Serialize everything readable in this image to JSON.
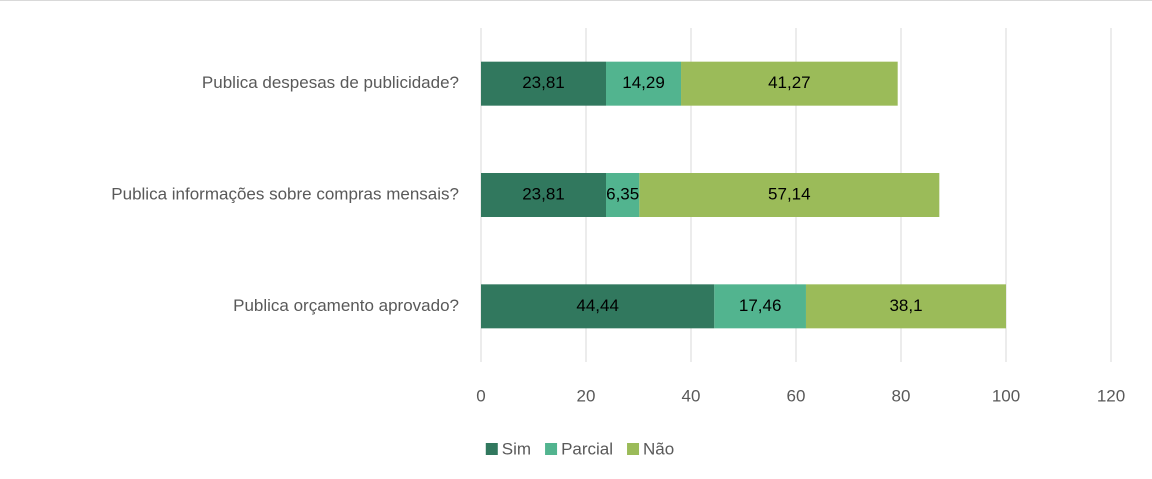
{
  "chart_data": {
    "type": "stacked-bar-horizontal",
    "categories": [
      "Publica despesas de publicidade?",
      "Publica informações sobre compras mensais?",
      "Publica orçamento aprovado?"
    ],
    "series": [
      {
        "name": "Sim",
        "color": "#31785e",
        "values": [
          23.81,
          23.81,
          44.44
        ],
        "value_labels": [
          "23,81",
          "23,81",
          "44,44"
        ]
      },
      {
        "name": "Parcial",
        "color": "#52b48f",
        "values": [
          14.29,
          6.35,
          17.46
        ],
        "value_labels": [
          "14,29",
          "6,35",
          "17,46"
        ]
      },
      {
        "name": "Não",
        "color": "#9bbb59",
        "values": [
          41.27,
          57.14,
          38.1
        ],
        "value_labels": [
          "41,27",
          "57,14",
          "38,1"
        ]
      }
    ],
    "xlim": [
      0,
      120
    ],
    "xticks": [
      0,
      20,
      40,
      60,
      80,
      100,
      120
    ],
    "grid": true,
    "legend": "bottom"
  }
}
